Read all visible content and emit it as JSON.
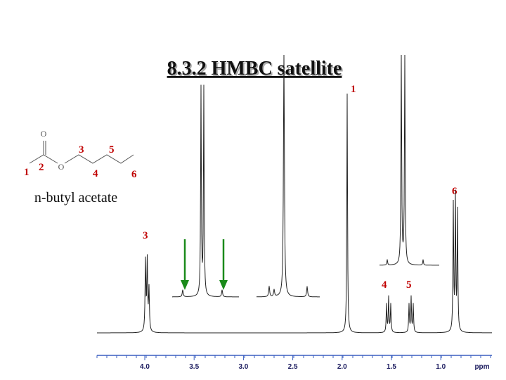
{
  "header": {
    "title": "8.3.2 HMBC satellite"
  },
  "molecule": {
    "name": "n-butyl acetate",
    "oxygens": [
      "O",
      "O"
    ],
    "atom_labels": [
      "1",
      "2",
      "3",
      "4",
      "5",
      "6"
    ]
  },
  "peak_labels": [
    "1",
    "6",
    "3",
    "4",
    "5"
  ],
  "axis": {
    "ticks": [
      "4.0",
      "3.5",
      "3.0",
      "2.5",
      "2.0",
      "1.5",
      "1.0"
    ],
    "unit": "ppm"
  }
}
